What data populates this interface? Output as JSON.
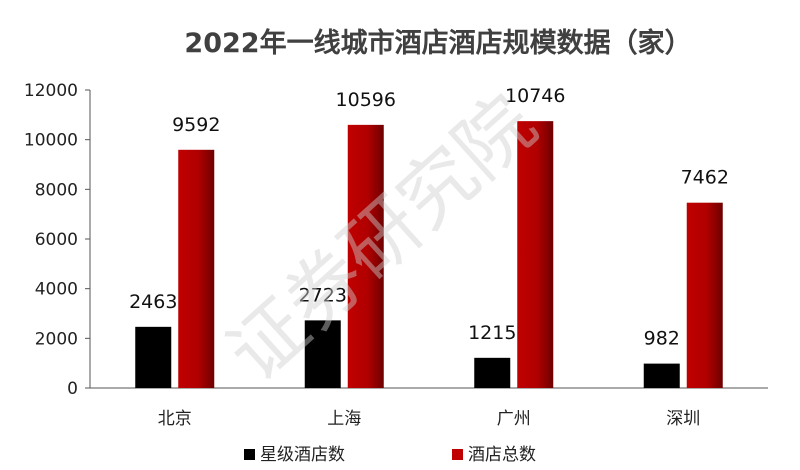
{
  "chart_data": {
    "type": "bar",
    "title": "2022年一线城市酒店酒店规模数据（家）",
    "categories": [
      "北京",
      "上海",
      "广州",
      "深圳"
    ],
    "series": [
      {
        "name": "星级酒店数",
        "values": [
          2463,
          2723,
          1215,
          982
        ],
        "color": "#000000"
      },
      {
        "name": "酒店总数",
        "values": [
          9592,
          10596,
          10746,
          7462
        ],
        "color": "#c00000",
        "gradient_dark": "#6e0000"
      }
    ],
    "ylim": [
      0,
      12000
    ],
    "yticks": [
      0,
      2000,
      4000,
      6000,
      8000,
      10000,
      12000
    ],
    "ytick_labels": [
      "0",
      "2000",
      "4000",
      "6000",
      "8000",
      "10000",
      "12000"
    ],
    "xlabel": "",
    "ylabel": "",
    "grid": false,
    "legend_position": "bottom",
    "data_labels": true
  },
  "watermark": "证券研究院"
}
